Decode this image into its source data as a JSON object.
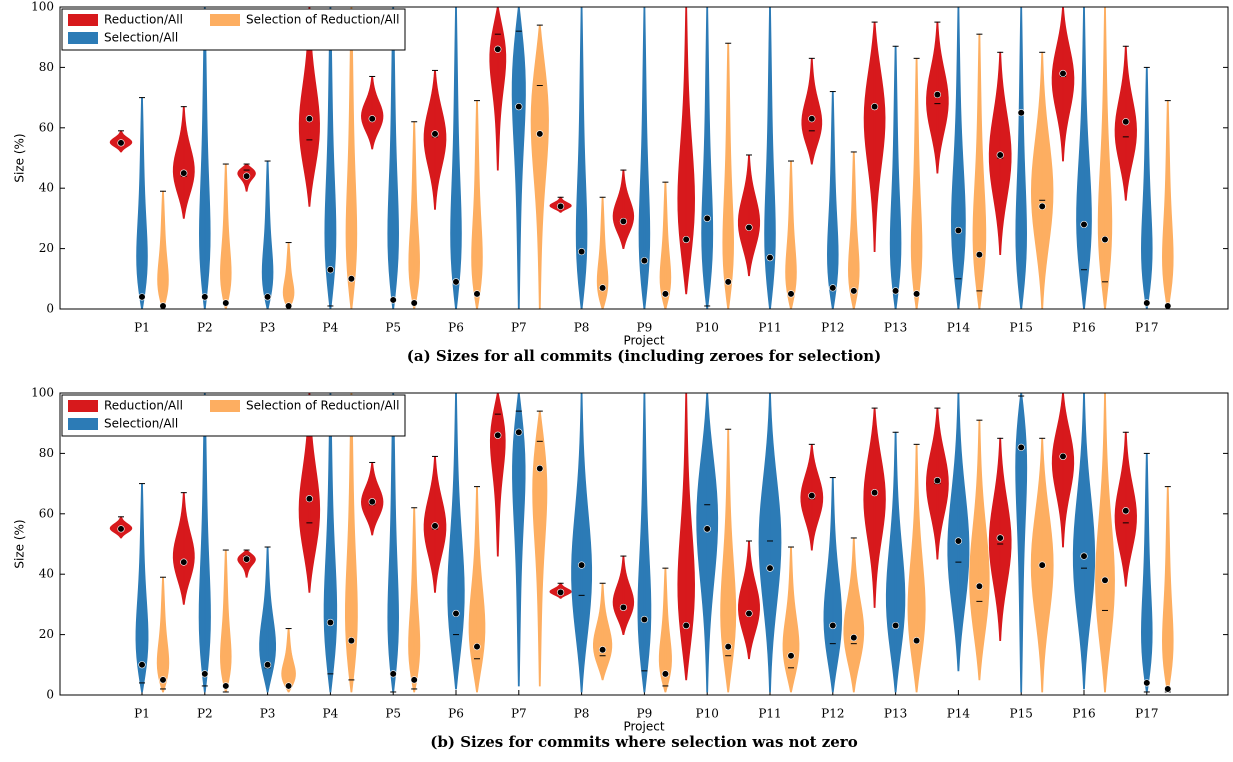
{
  "chart_data": [
    {
      "type": "violin",
      "title": "(a) Sizes for all commits (including zeroes for selection)",
      "xlabel": "Project",
      "ylabel": "Size (%)",
      "categories": [
        "P1",
        "P2",
        "P3",
        "P4",
        "P5",
        "P6",
        "P7",
        "P8",
        "P9",
        "P10",
        "P11",
        "P12",
        "P13",
        "P14",
        "P15",
        "P16",
        "P17"
      ],
      "ylim": [
        0,
        100
      ],
      "yticks": [
        0,
        20,
        40,
        60,
        80,
        100
      ],
      "legend": "upper left",
      "series": [
        {
          "name": "Reduction/All",
          "color": "#d7191c",
          "min": [
            52,
            30,
            39,
            34,
            53,
            33,
            46,
            32,
            20,
            5,
            11,
            48,
            19,
            45,
            18,
            49,
            36
          ],
          "max": [
            59,
            67,
            48,
            100,
            77,
            79,
            100,
            37,
            46,
            100,
            51,
            83,
            95,
            95,
            85,
            100,
            87
          ],
          "median": [
            55,
            44,
            46,
            56,
            63,
            57,
            91,
            34,
            29,
            23,
            27,
            59,
            67,
            68,
            50,
            77,
            57
          ],
          "mean": [
            55,
            45,
            44,
            63,
            63,
            58,
            86,
            34,
            29,
            23,
            27,
            63,
            67,
            71,
            51,
            78,
            62
          ]
        },
        {
          "name": "Selection/All",
          "color": "#2c7bb6",
          "min": [
            0,
            0,
            0,
            0,
            0,
            0,
            0,
            0,
            0,
            0,
            0,
            0,
            0,
            0,
            0,
            0,
            0
          ],
          "max": [
            70,
            100,
            49,
            100,
            100,
            100,
            100,
            100,
            100,
            100,
            100,
            72,
            87,
            100,
            100,
            100,
            80
          ],
          "median": [
            0,
            0,
            0,
            1,
            0,
            0,
            92,
            0,
            0,
            1,
            0,
            0,
            0,
            10,
            0,
            13,
            0
          ],
          "mean": [
            4,
            4,
            4,
            13,
            3,
            9,
            67,
            19,
            16,
            30,
            17,
            7,
            6,
            26,
            65,
            28,
            2
          ]
        },
        {
          "name": "Selection of Reduction/All",
          "color": "#fdae61",
          "min": [
            0,
            0,
            0,
            0,
            0,
            0,
            0,
            0,
            0,
            0,
            0,
            0,
            0,
            0,
            0,
            0,
            0
          ],
          "max": [
            39,
            48,
            22,
            100,
            62,
            69,
            94,
            37,
            42,
            88,
            49,
            52,
            83,
            91,
            85,
            100,
            69
          ],
          "median": [
            0,
            0,
            0,
            0,
            0,
            0,
            74,
            0,
            0,
            0,
            0,
            0,
            0,
            6,
            36,
            9,
            0
          ],
          "mean": [
            1,
            2,
            1,
            10,
            2,
            5,
            58,
            7,
            5,
            9,
            5,
            6,
            5,
            18,
            34,
            23,
            1
          ]
        }
      ]
    },
    {
      "type": "violin",
      "title": "(b) Sizes for commits where selection was not zero",
      "xlabel": "Project",
      "ylabel": "Size (%)",
      "categories": [
        "P1",
        "P2",
        "P3",
        "P4",
        "P5",
        "P6",
        "P7",
        "P8",
        "P9",
        "P10",
        "P11",
        "P12",
        "P13",
        "P14",
        "P15",
        "P16",
        "P17"
      ],
      "ylim": [
        0,
        100
      ],
      "yticks": [
        0,
        20,
        40,
        60,
        80,
        100
      ],
      "legend": "upper left",
      "series": [
        {
          "name": "Reduction/All",
          "color": "#d7191c",
          "min": [
            52,
            30,
            39,
            34,
            53,
            34,
            46,
            32,
            20,
            5,
            12,
            48,
            29,
            45,
            18,
            49,
            36
          ],
          "max": [
            59,
            67,
            48,
            100,
            77,
            79,
            100,
            37,
            46,
            100,
            51,
            83,
            95,
            95,
            85,
            100,
            87
          ],
          "median": [
            55,
            44,
            46,
            57,
            63,
            55,
            93,
            34,
            29,
            23,
            27,
            65,
            67,
            70,
            50,
            79,
            57
          ],
          "mean": [
            55,
            44,
            45,
            65,
            64,
            56,
            86,
            34,
            29,
            23,
            27,
            66,
            67,
            71,
            52,
            79,
            61
          ]
        },
        {
          "name": "Selection/All",
          "color": "#2c7bb6",
          "min": [
            1,
            1,
            1,
            1,
            1,
            2,
            3,
            1,
            1,
            1,
            1,
            1,
            1,
            8,
            1,
            2,
            1
          ],
          "max": [
            70,
            100,
            49,
            100,
            100,
            100,
            100,
            100,
            100,
            100,
            100,
            72,
            87,
            100,
            100,
            100,
            80
          ],
          "median": [
            4,
            3,
            9,
            7,
            1,
            20,
            94,
            33,
            8,
            63,
            51,
            17,
            23,
            44,
            99,
            42,
            1
          ],
          "mean": [
            10,
            7,
            10,
            24,
            7,
            27,
            87,
            43,
            25,
            55,
            42,
            23,
            23,
            51,
            82,
            46,
            4
          ]
        },
        {
          "name": "Selection of Reduction/All",
          "color": "#fdae61",
          "min": [
            1,
            1,
            1,
            1,
            1,
            1,
            3,
            5,
            1,
            1,
            1,
            1,
            1,
            5,
            1,
            1,
            1
          ],
          "max": [
            39,
            48,
            22,
            100,
            62,
            69,
            94,
            37,
            42,
            88,
            49,
            52,
            83,
            91,
            85,
            100,
            69
          ],
          "median": [
            2,
            1,
            3,
            5,
            2,
            12,
            84,
            13,
            3,
            13,
            9,
            17,
            18,
            31,
            43,
            28,
            1
          ],
          "mean": [
            5,
            3,
            3,
            18,
            5,
            16,
            75,
            15,
            7,
            16,
            13,
            19,
            18,
            36,
            43,
            38,
            2
          ]
        }
      ]
    }
  ]
}
